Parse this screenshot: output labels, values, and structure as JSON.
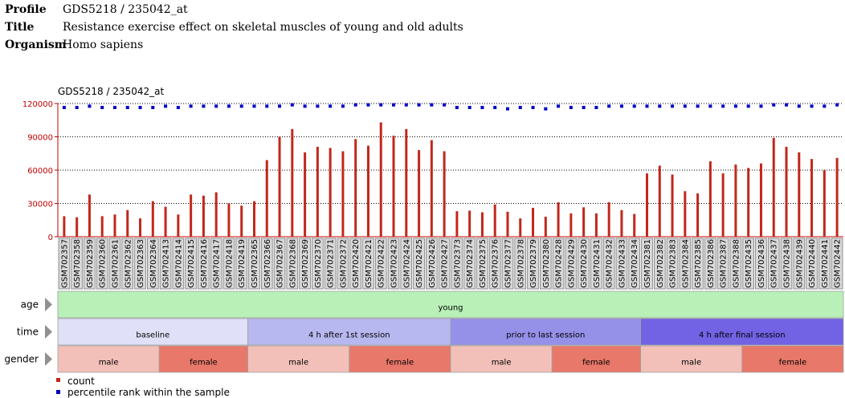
{
  "header": [
    {
      "key": "Profile",
      "value": "GDS5218 / 235042_at"
    },
    {
      "key": "Title",
      "value": "Resistance exercise effect on skeletal muscles of young and old adults"
    },
    {
      "key": "Organism",
      "value": "Homo sapiens"
    }
  ],
  "colors": {
    "count": "#c0281c",
    "rank": "#0000c8",
    "axis": "#c00000",
    "young": "#b8f0b8"
  },
  "chart_data": {
    "type": "bar",
    "title": "GDS5218 / 235042_at",
    "ylim": [
      0,
      120000
    ],
    "y_ticks": [
      0,
      30000,
      60000,
      90000,
      120000
    ],
    "grid": true,
    "categories": [
      "GSM702357",
      "GSM702358",
      "GSM702359",
      "GSM702360",
      "GSM702361",
      "GSM702362",
      "GSM702363",
      "GSM702364",
      "GSM702413",
      "GSM702414",
      "GSM702415",
      "GSM702416",
      "GSM702417",
      "GSM702418",
      "GSM702419",
      "GSM702365",
      "GSM702366",
      "GSM702367",
      "GSM702368",
      "GSM702369",
      "GSM702370",
      "GSM702371",
      "GSM702372",
      "GSM702420",
      "GSM702421",
      "GSM702422",
      "GSM702423",
      "GSM702424",
      "GSM702425",
      "GSM702426",
      "GSM702427",
      "GSM702373",
      "GSM702374",
      "GSM702375",
      "GSM702376",
      "GSM702377",
      "GSM702378",
      "GSM702379",
      "GSM702380",
      "GSM702428",
      "GSM702429",
      "GSM702430",
      "GSM702431",
      "GSM702432",
      "GSM702433",
      "GSM702434",
      "GSM702381",
      "GSM702382",
      "GSM702383",
      "GSM702384",
      "GSM702385",
      "GSM702386",
      "GSM702387",
      "GSM702388",
      "GSM702435",
      "GSM702436",
      "GSM702437",
      "GSM702438",
      "GSM702439",
      "GSM702440",
      "GSM702441",
      "GSM702442"
    ],
    "series": [
      {
        "name": "count",
        "values": [
          18500,
          17500,
          38000,
          18500,
          20000,
          24000,
          16500,
          32000,
          27000,
          20000,
          38000,
          37000,
          40000,
          30000,
          28000,
          32000,
          69000,
          90000,
          97000,
          76000,
          81000,
          80000,
          77000,
          88000,
          82000,
          103000,
          91000,
          97000,
          78000,
          87000,
          77000,
          23000,
          23500,
          22000,
          29000,
          22500,
          16500,
          26000,
          18000,
          31000,
          21000,
          26500,
          21000,
          31000,
          24000,
          20500,
          57000,
          64000,
          56000,
          41000,
          39000,
          68000,
          57000,
          65000,
          62000,
          66000,
          89000,
          81000,
          76000,
          70000,
          60000,
          71000
        ]
      },
      {
        "name": "percentile rank within the sample",
        "values": [
          97,
          97,
          98,
          97,
          97,
          97,
          97,
          97,
          98,
          97,
          98,
          98,
          98,
          98,
          98,
          98,
          98,
          98,
          99,
          98,
          98,
          98,
          98,
          99,
          99,
          99,
          99,
          99,
          99,
          99,
          99,
          97,
          97,
          97,
          97,
          96,
          97,
          97,
          96,
          98,
          97,
          97,
          97,
          98,
          98,
          98,
          98,
          98,
          98,
          98,
          98,
          98,
          98,
          98,
          98,
          98,
          99,
          99,
          98,
          98,
          98,
          99
        ]
      }
    ],
    "legend": [
      "count",
      "percentile rank within the sample"
    ]
  },
  "tracks": [
    {
      "label": "age",
      "segments": [
        {
          "text": "young",
          "start": 0,
          "end": 62,
          "color": "#b8f0b8"
        }
      ]
    },
    {
      "label": "time",
      "segments": [
        {
          "text": "baseline",
          "start": 0,
          "end": 15,
          "color": "#e0e0f8"
        },
        {
          "text": "4 h after 1st session",
          "start": 15,
          "end": 31,
          "color": "#b8b8f0"
        },
        {
          "text": "prior to last session",
          "start": 31,
          "end": 46,
          "color": "#9590e8"
        },
        {
          "text": "4 h after final session",
          "start": 46,
          "end": 62,
          "color": "#7262e4"
        }
      ]
    },
    {
      "label": "gender",
      "segments": [
        {
          "text": "male",
          "start": 0,
          "end": 8,
          "color": "#f2c0b8"
        },
        {
          "text": "female",
          "start": 8,
          "end": 15,
          "color": "#e8786a"
        },
        {
          "text": "male",
          "start": 15,
          "end": 23,
          "color": "#f2c0b8"
        },
        {
          "text": "female",
          "start": 23,
          "end": 31,
          "color": "#e8786a"
        },
        {
          "text": "male",
          "start": 31,
          "end": 39,
          "color": "#f2c0b8"
        },
        {
          "text": "female",
          "start": 39,
          "end": 46,
          "color": "#e8786a"
        },
        {
          "text": "male",
          "start": 46,
          "end": 54,
          "color": "#f2c0b8"
        },
        {
          "text": "female",
          "start": 54,
          "end": 62,
          "color": "#e8786a"
        }
      ]
    }
  ]
}
